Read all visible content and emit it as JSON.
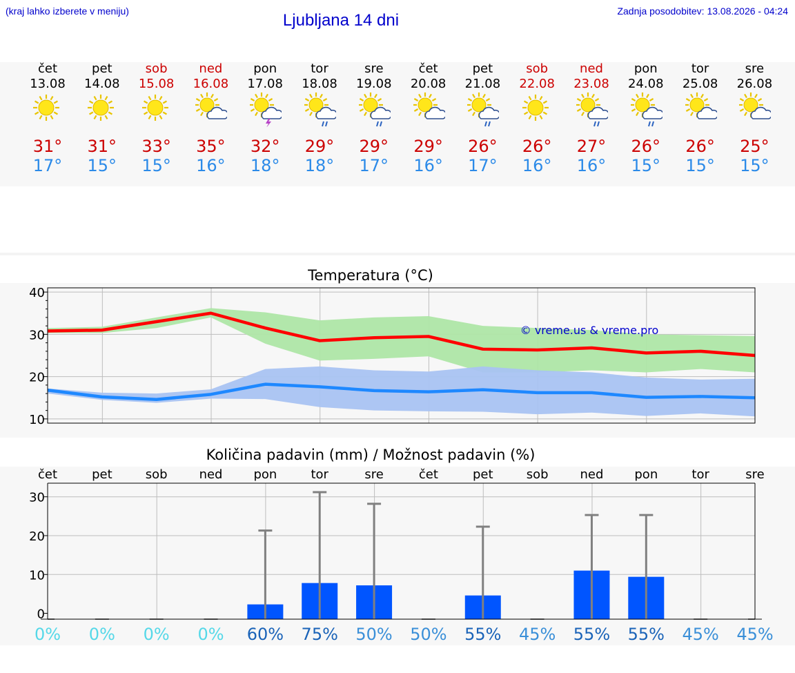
{
  "header": {
    "menu_hint": "(kraj lahko izberete v meniju)",
    "title": "Ljubljana 14 dni",
    "last_update": "Zadnja posodobitev: 13.08.2026 - 04:24"
  },
  "days": [
    {
      "name": "čet",
      "date": "13.08",
      "weekend": false,
      "icon": "sun-icon",
      "tmax": "31°",
      "tmin": "17°"
    },
    {
      "name": "pet",
      "date": "14.08",
      "weekend": false,
      "icon": "sun-icon",
      "tmax": "31°",
      "tmin": "15°"
    },
    {
      "name": "sob",
      "date": "15.08",
      "weekend": true,
      "icon": "sun-icon",
      "tmax": "33°",
      "tmin": "15°"
    },
    {
      "name": "ned",
      "date": "16.08",
      "weekend": true,
      "icon": "sun-cloud-icon",
      "tmax": "35°",
      "tmin": "16°"
    },
    {
      "name": "pon",
      "date": "17.08",
      "weekend": false,
      "icon": "sun-cloud-thunder-icon",
      "tmax": "32°",
      "tmin": "18°"
    },
    {
      "name": "tor",
      "date": "18.08",
      "weekend": false,
      "icon": "sun-cloud-rain-icon",
      "tmax": "29°",
      "tmin": "18°"
    },
    {
      "name": "sre",
      "date": "19.08",
      "weekend": false,
      "icon": "sun-cloud-rain-icon",
      "tmax": "29°",
      "tmin": "17°"
    },
    {
      "name": "čet",
      "date": "20.08",
      "weekend": false,
      "icon": "sun-cloud-icon",
      "tmax": "29°",
      "tmin": "16°"
    },
    {
      "name": "pet",
      "date": "21.08",
      "weekend": false,
      "icon": "sun-cloud-rain-icon",
      "tmax": "26°",
      "tmin": "17°"
    },
    {
      "name": "sob",
      "date": "22.08",
      "weekend": true,
      "icon": "sun-icon",
      "tmax": "26°",
      "tmin": "16°"
    },
    {
      "name": "ned",
      "date": "23.08",
      "weekend": true,
      "icon": "sun-cloud-rain-icon",
      "tmax": "27°",
      "tmin": "16°"
    },
    {
      "name": "pon",
      "date": "24.08",
      "weekend": false,
      "icon": "sun-cloud-rain-icon",
      "tmax": "26°",
      "tmin": "15°"
    },
    {
      "name": "tor",
      "date": "25.08",
      "weekend": false,
      "icon": "sun-cloud-icon",
      "tmax": "26°",
      "tmin": "15°"
    },
    {
      "name": "sre",
      "date": "26.08",
      "weekend": false,
      "icon": "sun-cloud-icon",
      "tmax": "25°",
      "tmin": "15°"
    }
  ],
  "chart_data": [
    {
      "type": "line",
      "title": "Temperatura (°C)",
      "watermark": "© vreme.us & vreme.pro",
      "x": [
        "13.08",
        "14.08",
        "15.08",
        "16.08",
        "17.08",
        "18.08",
        "19.08",
        "20.08",
        "21.08",
        "22.08",
        "23.08",
        "24.08",
        "25.08",
        "26.08"
      ],
      "ylim": [
        9,
        41
      ],
      "yticks": [
        10,
        20,
        30,
        40
      ],
      "grid": true,
      "series": [
        {
          "role": "max",
          "color": "#ff0000",
          "values": [
            30.8,
            31.0,
            33.0,
            35.0,
            31.5,
            28.5,
            29.2,
            29.5,
            26.5,
            26.3,
            26.8,
            25.6,
            26.0,
            25.0
          ],
          "band_low": [
            30.3,
            30.3,
            31.5,
            34.0,
            27.8,
            23.8,
            24.2,
            24.8,
            21.0,
            21.0,
            21.5,
            21.0,
            21.8,
            21.0
          ],
          "band_high": [
            31.5,
            31.8,
            34.0,
            36.2,
            35.2,
            33.3,
            34.0,
            34.3,
            32.0,
            31.5,
            31.0,
            30.0,
            29.8,
            29.6
          ],
          "band_color": "#aee6a6"
        },
        {
          "role": "min",
          "color": "#1e88ff",
          "values": [
            16.8,
            15.2,
            14.6,
            15.8,
            18.2,
            17.6,
            16.7,
            16.4,
            16.9,
            16.2,
            16.2,
            15.1,
            15.3,
            15.0
          ],
          "band_low": [
            16.0,
            14.5,
            13.8,
            14.8,
            14.7,
            12.8,
            12.0,
            11.8,
            11.7,
            11.1,
            11.5,
            10.7,
            11.3,
            10.6
          ],
          "band_high": [
            17.2,
            16.2,
            16.0,
            17.0,
            21.8,
            22.4,
            21.5,
            21.2,
            22.4,
            21.5,
            21.0,
            19.8,
            19.3,
            19.5
          ],
          "band_color": "#a9c3f2"
        }
      ]
    },
    {
      "type": "bar",
      "title": "Količina padavin (mm) / Možnost padavin (%)",
      "categories": [
        "čet",
        "pet",
        "sob",
        "ned",
        "pon",
        "tor",
        "sre",
        "čet",
        "pet",
        "sob",
        "ned",
        "pon",
        "tor",
        "sre"
      ],
      "ylim": [
        -1.5,
        33.5
      ],
      "yticks": [
        0,
        10,
        20,
        30
      ],
      "grid": true,
      "values": [
        0,
        0,
        0,
        0,
        2.3,
        7.8,
        7.2,
        0,
        4.6,
        0,
        11.0,
        9.4,
        0,
        0
      ],
      "error_high": [
        0,
        0,
        0,
        0,
        21.3,
        31.2,
        28.2,
        0,
        22.3,
        0,
        25.3,
        25.3,
        0,
        0
      ],
      "probability": [
        "0%",
        "0%",
        "0%",
        "0%",
        "60%",
        "75%",
        "50%",
        "50%",
        "55%",
        "45%",
        "55%",
        "55%",
        "45%",
        "45%"
      ],
      "probability_colors": [
        "#55d8e8",
        "#55d8e8",
        "#55d8e8",
        "#55d8e8",
        "#1a63b8",
        "#1a63b8",
        "#3a8fd8",
        "#3a8fd8",
        "#1a63b8",
        "#3a8fd8",
        "#1a63b8",
        "#1a63b8",
        "#3a8fd8",
        "#3a8fd8"
      ],
      "bar_color": "#0055ff",
      "error_color": "#808080"
    }
  ]
}
